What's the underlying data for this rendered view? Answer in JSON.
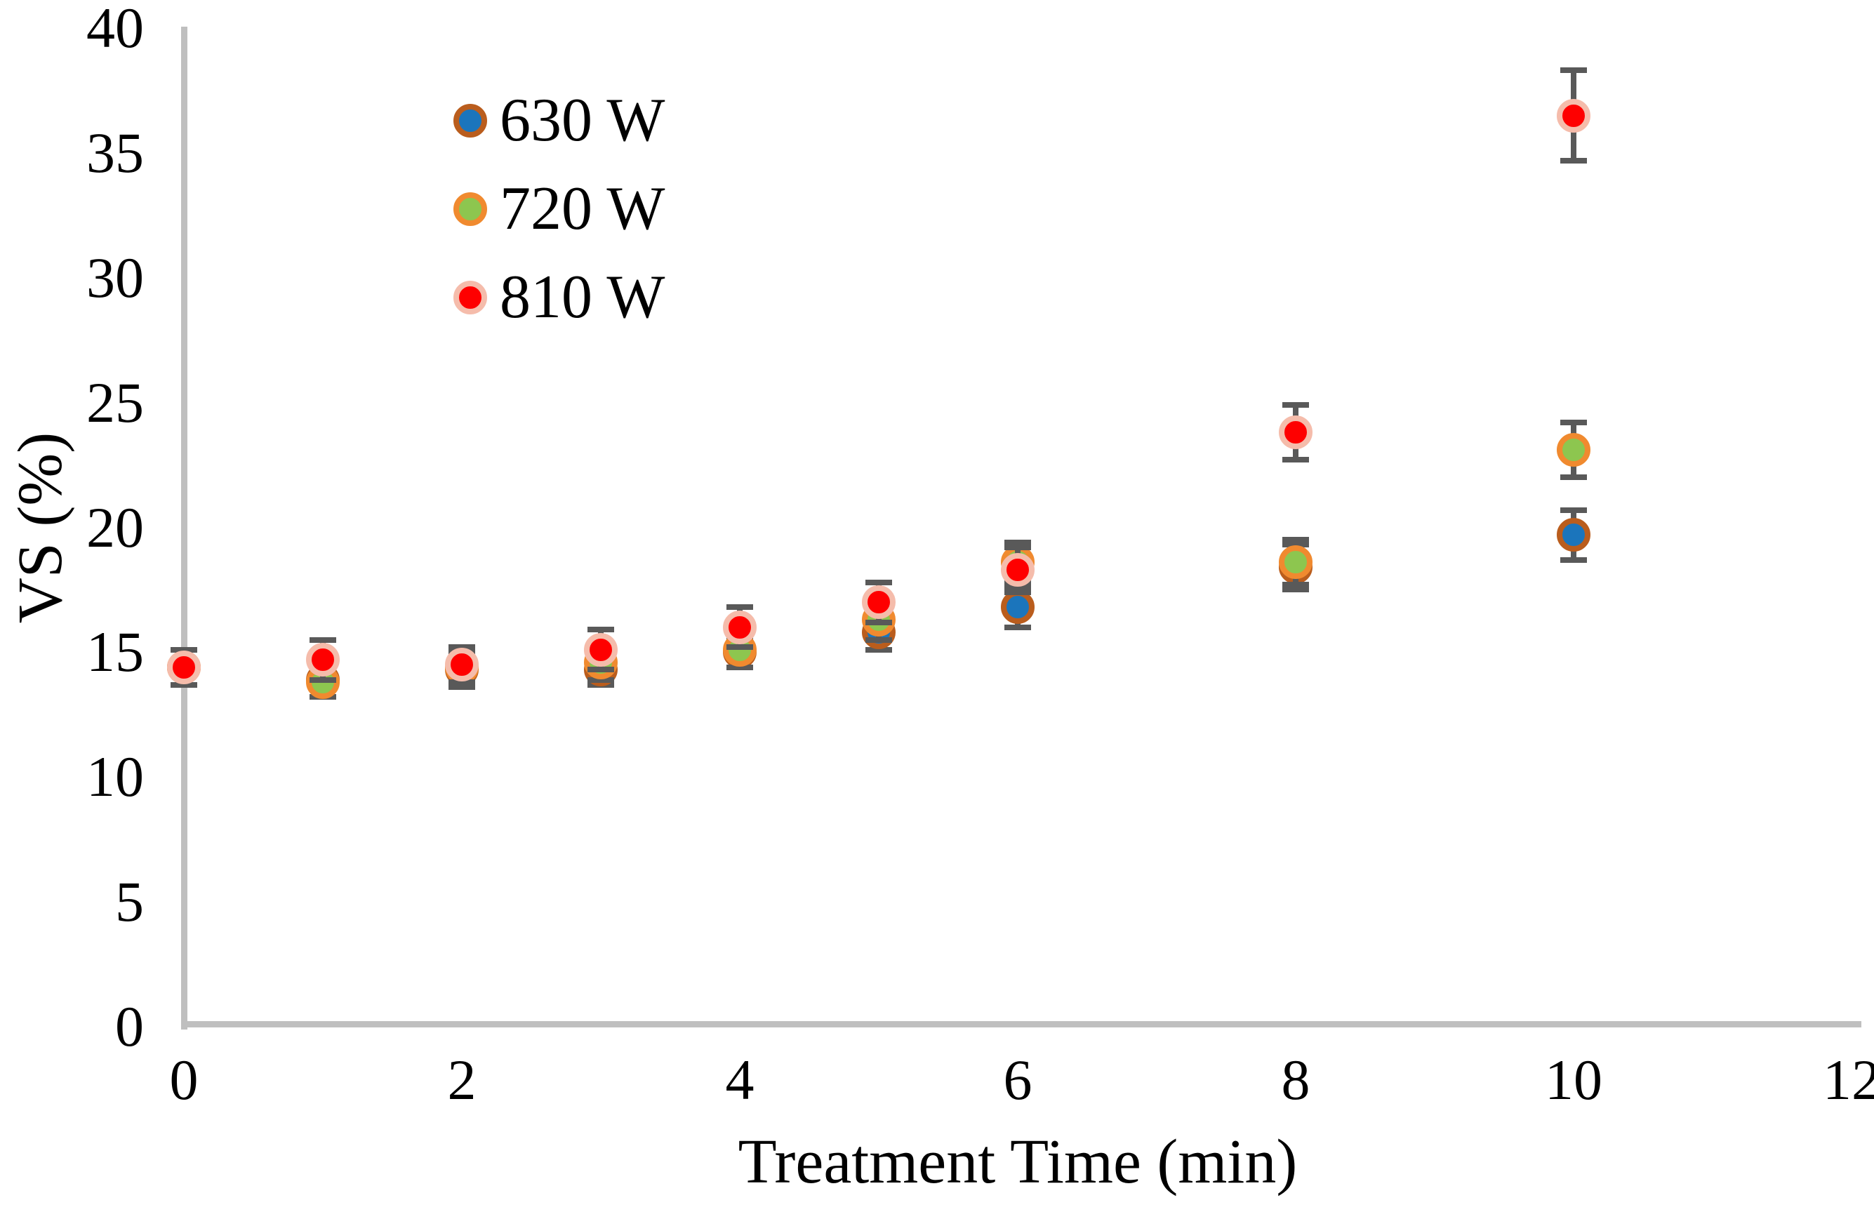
{
  "chart_data": {
    "type": "scatter",
    "title": "",
    "xlabel": "Treatment Time (min)",
    "ylabel": "VS (%)",
    "xlim": [
      0,
      12
    ],
    "ylim": [
      0,
      40
    ],
    "x_ticks": [
      0,
      2,
      4,
      6,
      8,
      10,
      12
    ],
    "y_ticks": [
      0,
      5,
      10,
      15,
      20,
      25,
      30,
      35,
      40
    ],
    "grid": false,
    "legend_position": "inside-top-left",
    "x": [
      0,
      1,
      2,
      3,
      4,
      5,
      6,
      8,
      10
    ],
    "series": [
      {
        "name": "630 W",
        "fill": "#1B75BC",
        "ring": "#BA5D1D",
        "values": [
          14.4,
          13.9,
          14.3,
          14.3,
          15.0,
          15.8,
          16.8,
          18.4,
          19.7
        ],
        "errors": [
          0.7,
          0.7,
          0.7,
          0.6,
          0.6,
          0.7,
          0.8,
          0.9,
          1.0
        ]
      },
      {
        "name": "720 W",
        "fill": "#8DC64F",
        "ring": "#F08A2F",
        "values": [
          14.4,
          13.8,
          14.4,
          14.6,
          15.1,
          16.3,
          18.6,
          18.6,
          23.1
        ],
        "errors": [
          0.7,
          0.6,
          0.7,
          0.7,
          0.7,
          0.8,
          0.8,
          0.9,
          1.1
        ]
      },
      {
        "name": "810 W",
        "fill": "#FE0000",
        "ring": "#F5BCAB",
        "values": [
          14.4,
          14.7,
          14.5,
          15.1,
          16.0,
          17.0,
          18.3,
          23.8,
          36.5
        ],
        "errors": [
          0.7,
          0.8,
          0.7,
          0.8,
          0.8,
          0.8,
          0.9,
          1.1,
          1.8
        ]
      }
    ],
    "colors": {
      "axis_line": "#BFBFBF",
      "error_bar": "#595959",
      "text": "#000000",
      "background": "#FFFFFF"
    }
  }
}
